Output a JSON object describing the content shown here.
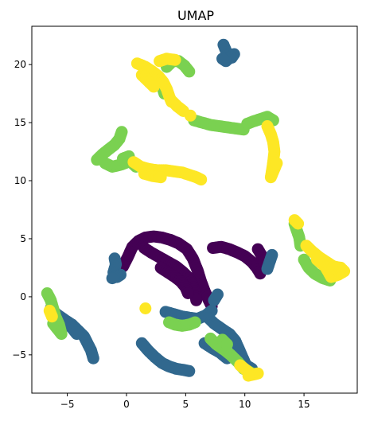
{
  "chart_data": {
    "type": "scatter",
    "title": "UMAP",
    "xlabel": "",
    "ylabel": "",
    "xlim": [
      -8,
      19.5
    ],
    "ylim": [
      -8.3,
      23.3
    ],
    "xticks": [
      -5,
      0,
      5,
      10,
      15
    ],
    "yticks": [
      -5,
      0,
      5,
      10,
      15,
      20
    ],
    "grid": false,
    "legend": "none",
    "marker_radius_data": 0.3,
    "series": [
      {
        "color": "#440154",
        "segments": [
          [
            [
              -0.3,
              2.6
            ],
            [
              0.1,
              3.4
            ],
            [
              0.5,
              4.3
            ],
            [
              1.0,
              4.8
            ],
            [
              1.6,
              5.1
            ],
            [
              2.3,
              5.2
            ],
            [
              3.0,
              5.1
            ],
            [
              3.7,
              4.9
            ],
            [
              4.4,
              4.6
            ],
            [
              5.1,
              4.1
            ],
            [
              5.6,
              3.3
            ],
            [
              6.0,
              2.3
            ],
            [
              6.3,
              1.3
            ],
            [
              6.6,
              0.5
            ],
            [
              6.9,
              -0.2
            ],
            [
              7.2,
              -0.8
            ]
          ],
          [
            [
              1.5,
              4.2
            ],
            [
              2.1,
              3.8
            ],
            [
              2.8,
              3.4
            ],
            [
              3.5,
              3.0
            ],
            [
              4.2,
              2.6
            ],
            [
              4.8,
              2.1
            ],
            [
              5.3,
              1.6
            ],
            [
              5.6,
              1.0
            ],
            [
              5.8,
              0.3
            ],
            [
              5.9,
              -0.3
            ]
          ],
          [
            [
              2.9,
              2.5
            ],
            [
              3.5,
              2.1
            ],
            [
              4.1,
              1.7
            ],
            [
              4.6,
              1.3
            ],
            [
              5.0,
              0.8
            ],
            [
              5.2,
              0.3
            ]
          ],
          [
            [
              7.3,
              4.2
            ],
            [
              8.0,
              4.3
            ],
            [
              8.7,
              4.1
            ],
            [
              9.4,
              3.8
            ],
            [
              10.0,
              3.5
            ],
            [
              10.6,
              3.0
            ],
            [
              11.0,
              2.5
            ],
            [
              11.3,
              2.0
            ]
          ],
          [
            [
              11.1,
              4.1
            ],
            [
              11.4,
              3.6
            ],
            [
              11.6,
              3.0
            ]
          ]
        ]
      },
      {
        "color": "#31688e",
        "segments": [
          [
            [
              8.2,
              21.7
            ],
            [
              8.4,
              21.2
            ],
            [
              8.6,
              20.8
            ],
            [
              8.9,
              20.6
            ],
            [
              9.1,
              20.9
            ],
            [
              8.4,
              20.3
            ],
            [
              8.1,
              20.5
            ]
          ],
          [
            [
              -1.0,
              3.3
            ],
            [
              -0.9,
              2.8
            ],
            [
              -1.1,
              2.1
            ],
            [
              -0.8,
              1.7
            ],
            [
              -0.5,
              1.9
            ],
            [
              -1.2,
              1.6
            ]
          ],
          [
            [
              -6.4,
              -1.0
            ],
            [
              -5.9,
              -1.5
            ],
            [
              -5.2,
              -2.0
            ],
            [
              -4.6,
              -2.4
            ],
            [
              -4.1,
              -2.9
            ],
            [
              -3.6,
              -3.4
            ],
            [
              -3.3,
              -4.0
            ],
            [
              -3.0,
              -4.6
            ],
            [
              -2.8,
              -5.3
            ]
          ],
          [
            [
              -5.1,
              -2.2
            ],
            [
              -4.6,
              -2.7
            ],
            [
              -4.2,
              -3.2
            ]
          ],
          [
            [
              1.3,
              -4.0
            ],
            [
              1.8,
              -4.6
            ],
            [
              2.4,
              -5.2
            ],
            [
              3.0,
              -5.7
            ],
            [
              3.6,
              -6.0
            ],
            [
              4.2,
              -6.2
            ],
            [
              4.8,
              -6.3
            ],
            [
              5.3,
              -6.4
            ]
          ],
          [
            [
              3.3,
              -1.3
            ],
            [
              4.0,
              -1.5
            ],
            [
              4.7,
              -1.7
            ],
            [
              5.3,
              -1.8
            ],
            [
              6.0,
              -1.9
            ],
            [
              6.7,
              -1.6
            ],
            [
              7.2,
              -1.2
            ]
          ],
          [
            [
              6.8,
              -1.7
            ],
            [
              7.4,
              -2.3
            ],
            [
              8.1,
              -2.8
            ],
            [
              8.7,
              -3.2
            ],
            [
              9.2,
              -3.8
            ],
            [
              9.5,
              -4.5
            ],
            [
              9.8,
              -5.2
            ],
            [
              10.1,
              -5.9
            ],
            [
              10.6,
              -6.2
            ]
          ],
          [
            [
              6.6,
              -4.0
            ],
            [
              7.2,
              -4.4
            ],
            [
              7.9,
              -4.8
            ],
            [
              8.5,
              -5.3
            ]
          ],
          [
            [
              7.4,
              -0.3
            ],
            [
              7.7,
              0.2
            ]
          ],
          [
            [
              12.3,
              3.6
            ],
            [
              12.1,
              3.0
            ],
            [
              11.9,
              2.4
            ]
          ]
        ]
      },
      {
        "color": "#7ad151",
        "segments": [
          [
            [
              3.4,
              19.8
            ],
            [
              3.9,
              20.3
            ],
            [
              4.4,
              20.3
            ],
            [
              4.9,
              19.9
            ],
            [
              5.3,
              19.4
            ]
          ],
          [
            [
              2.8,
              18.8
            ],
            [
              3.0,
              18.2
            ],
            [
              3.2,
              17.5
            ]
          ],
          [
            [
              5.7,
              15.2
            ],
            [
              6.4,
              15.0
            ],
            [
              7.1,
              14.8
            ],
            [
              7.8,
              14.7
            ],
            [
              8.5,
              14.6
            ],
            [
              9.2,
              14.5
            ],
            [
              9.9,
              14.4
            ]
          ],
          [
            [
              10.2,
              14.9
            ],
            [
              10.7,
              15.1
            ],
            [
              11.3,
              15.3
            ],
            [
              11.9,
              15.5
            ],
            [
              12.4,
              15.2
            ]
          ],
          [
            [
              -2.5,
              11.8
            ],
            [
              -2.0,
              12.3
            ],
            [
              -1.5,
              12.7
            ],
            [
              -1.0,
              13.1
            ],
            [
              -0.6,
              13.6
            ],
            [
              -0.4,
              14.2
            ]
          ],
          [
            [
              -1.8,
              11.5
            ],
            [
              -1.2,
              11.2
            ],
            [
              -0.4,
              11.4
            ],
            [
              0.3,
              11.7
            ],
            [
              0.8,
              11.2
            ]
          ],
          [
            [
              -0.3,
              11.9
            ],
            [
              0.2,
              12.1
            ]
          ],
          [
            [
              14.2,
              6.3
            ],
            [
              14.4,
              5.7
            ],
            [
              14.6,
              5.1
            ],
            [
              14.7,
              4.4
            ]
          ],
          [
            [
              15.0,
              3.2
            ],
            [
              15.4,
              2.5
            ],
            [
              15.9,
              2.0
            ],
            [
              16.6,
              1.6
            ],
            [
              17.2,
              1.4
            ]
          ],
          [
            [
              -6.7,
              0.3
            ],
            [
              -6.4,
              -0.3
            ],
            [
              -6.2,
              -1.0
            ],
            [
              -6.0,
              -1.7
            ],
            [
              -5.7,
              -2.4
            ],
            [
              -5.5,
              -3.2
            ],
            [
              -6.2,
              -2.3
            ]
          ],
          [
            [
              3.6,
              -2.2
            ],
            [
              4.1,
              -2.4
            ],
            [
              4.7,
              -2.5
            ],
            [
              5.3,
              -2.4
            ],
            [
              5.8,
              -2.2
            ]
          ],
          [
            [
              7.1,
              -3.6
            ],
            [
              7.6,
              -4.1
            ],
            [
              8.3,
              -4.6
            ],
            [
              8.8,
              -5.0
            ],
            [
              9.4,
              -5.6
            ],
            [
              9.9,
              -6.2
            ],
            [
              10.6,
              -6.6
            ]
          ],
          [
            [
              8.1,
              -3.7
            ],
            [
              8.5,
              -4.1
            ]
          ]
        ]
      },
      {
        "color": "#fde725",
        "segments": [
          [
            [
              0.9,
              20.1
            ],
            [
              1.6,
              19.8
            ],
            [
              2.2,
              19.4
            ],
            [
              2.7,
              19.0
            ],
            [
              3.1,
              18.5
            ],
            [
              3.4,
              17.9
            ],
            [
              3.6,
              17.3
            ],
            [
              3.8,
              16.8
            ]
          ],
          [
            [
              1.3,
              19.1
            ],
            [
              1.8,
              18.6
            ],
            [
              2.3,
              18.1
            ]
          ],
          [
            [
              2.8,
              20.3
            ],
            [
              3.4,
              20.5
            ],
            [
              4.1,
              20.4
            ]
          ],
          [
            [
              3.8,
              16.9
            ],
            [
              4.3,
              16.4
            ],
            [
              4.8,
              16.0
            ]
          ],
          [
            [
              5.4,
              15.6
            ]
          ],
          [
            [
              11.9,
              14.7
            ],
            [
              12.2,
              14.0
            ],
            [
              12.4,
              13.3
            ],
            [
              12.5,
              12.5
            ],
            [
              12.4,
              11.6
            ],
            [
              12.3,
              10.9
            ],
            [
              12.2,
              10.3
            ],
            [
              12.7,
              11.5
            ]
          ],
          [
            [
              0.6,
              11.6
            ],
            [
              1.2,
              11.2
            ],
            [
              1.9,
              11.0
            ],
            [
              2.6,
              10.9
            ],
            [
              3.3,
              10.9
            ],
            [
              4.0,
              10.8
            ],
            [
              4.7,
              10.7
            ],
            [
              5.3,
              10.5
            ],
            [
              5.9,
              10.3
            ],
            [
              6.3,
              10.1
            ]
          ],
          [
            [
              1.5,
              10.6
            ],
            [
              2.2,
              10.4
            ],
            [
              2.9,
              10.3
            ]
          ],
          [
            [
              14.2,
              6.6
            ],
            [
              14.5,
              6.3
            ]
          ],
          [
            [
              15.2,
              4.4
            ],
            [
              15.7,
              3.9
            ],
            [
              16.3,
              3.4
            ],
            [
              16.9,
              3.0
            ],
            [
              17.5,
              2.6
            ],
            [
              18.1,
              2.5
            ],
            [
              18.4,
              2.2
            ],
            [
              17.9,
              1.9
            ],
            [
              17.3,
              1.7
            ],
            [
              16.8,
              2.6
            ],
            [
              16.1,
              3.2
            ]
          ],
          [
            [
              1.6,
              -1.0
            ]
          ],
          [
            [
              -6.5,
              -1.2
            ],
            [
              -6.3,
              -1.7
            ]
          ],
          [
            [
              9.6,
              -5.9
            ],
            [
              10.1,
              -6.3
            ],
            [
              10.6,
              -6.7
            ],
            [
              11.1,
              -6.6
            ],
            [
              10.3,
              -6.8
            ]
          ]
        ]
      }
    ]
  }
}
